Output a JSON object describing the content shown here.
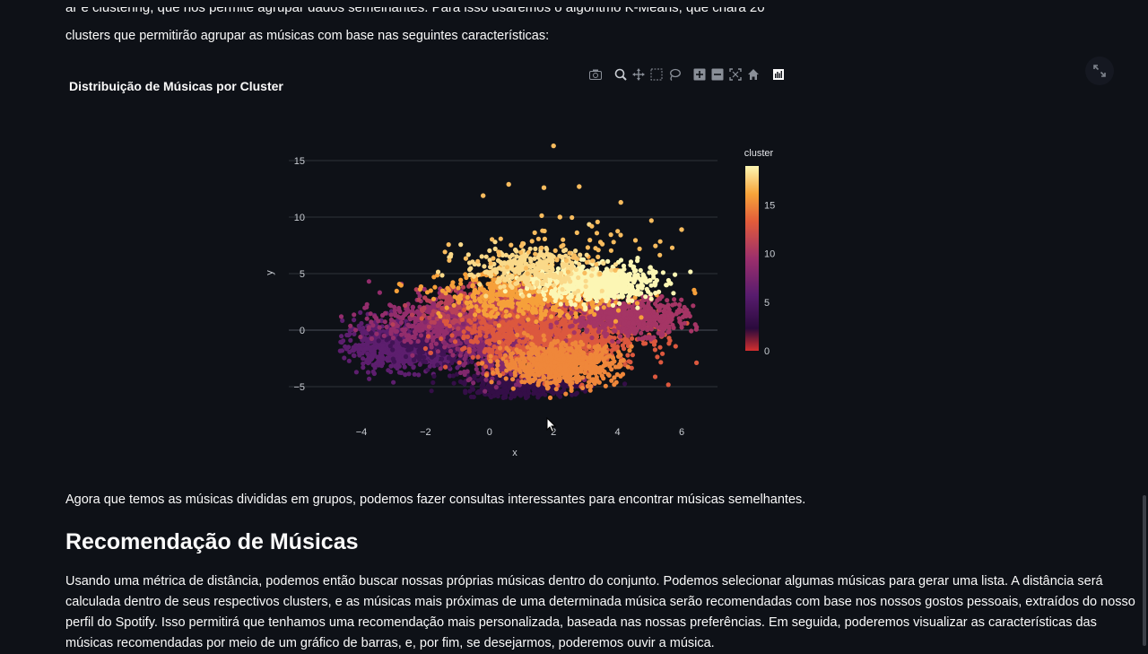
{
  "intro": {
    "line_cut": "ar e clustering, que nos permite agrupar dados semelhantes. Para isso usaremos o algoritmo K-Means, que criará 20",
    "line2": "clusters que permitirão agrupar as músicas com base nas seguintes características:"
  },
  "chart_title": "Distribuição de Músicas por Cluster",
  "modebar": {
    "icons": [
      "camera-icon",
      "zoom-icon",
      "pan-icon",
      "box-select-icon",
      "lasso-icon",
      "zoom-in-icon",
      "zoom-out-icon",
      "autoscale-icon",
      "reset-axes-icon",
      "plotly-logo-icon"
    ]
  },
  "fullscreen_icon": "expand-icon",
  "chart_data": {
    "type": "scatter",
    "xlabel": "x",
    "ylabel": "y",
    "xlim": [
      -5,
      7
    ],
    "ylim": [
      -7,
      17
    ],
    "xticks": [
      -4,
      -2,
      0,
      2,
      4,
      6
    ],
    "yticks": [
      -5,
      0,
      5,
      10,
      15
    ],
    "grid": true,
    "colorbar": {
      "title": "cluster",
      "range": [
        0,
        19
      ],
      "ticks": [
        0,
        5,
        10,
        15
      ],
      "colorscale": "inferno-like"
    },
    "point_clouds": [
      {
        "cluster": 6,
        "cx": -2.7,
        "cy": -1.3,
        "sx": 0.9,
        "sy": 1.0,
        "n": 900
      },
      {
        "cluster": 4,
        "cx": -1.3,
        "cy": -1.0,
        "sx": 0.8,
        "sy": 0.9,
        "n": 500
      },
      {
        "cluster": 3,
        "cx": 1.0,
        "cy": -4.8,
        "sx": 0.9,
        "sy": 0.6,
        "n": 500
      },
      {
        "cluster": 9,
        "cx": -0.7,
        "cy": 0.8,
        "sx": 1.3,
        "sy": 1.1,
        "n": 900
      },
      {
        "cluster": 11,
        "cx": 0.3,
        "cy": 2.0,
        "sx": 1.0,
        "sy": 1.0,
        "n": 600
      },
      {
        "cluster": 8,
        "cx": 0.7,
        "cy": -1.8,
        "sx": 0.8,
        "sy": 1.2,
        "n": 500
      },
      {
        "cluster": 13,
        "cx": 2.0,
        "cy": -0.3,
        "sx": 1.4,
        "sy": 1.5,
        "n": 1100
      },
      {
        "cluster": 10,
        "cx": 4.4,
        "cy": 1.2,
        "sx": 0.9,
        "sy": 0.8,
        "n": 600
      },
      {
        "cluster": 15,
        "cx": 2.2,
        "cy": -3.0,
        "sx": 0.9,
        "sy": 0.9,
        "n": 700
      },
      {
        "cluster": 16,
        "cx": 1.4,
        "cy": 3.2,
        "sx": 1.4,
        "sy": 1.0,
        "n": 600
      },
      {
        "cluster": 19,
        "cx": 3.3,
        "cy": 4.2,
        "sx": 0.9,
        "sy": 0.8,
        "n": 700
      },
      {
        "cluster": 18,
        "cx": 1.2,
        "cy": 5.5,
        "sx": 1.0,
        "sy": 0.9,
        "n": 300
      },
      {
        "cluster": 17,
        "cx": 2.0,
        "cy": 7.3,
        "sx": 1.5,
        "sy": 1.1,
        "n": 70
      }
    ],
    "outliers": [
      {
        "x": 2.0,
        "y": 16.3,
        "cluster": 17
      },
      {
        "x": -0.2,
        "y": 11.9,
        "cluster": 17
      },
      {
        "x": 0.6,
        "y": 12.9,
        "cluster": 17
      },
      {
        "x": 1.7,
        "y": 12.6,
        "cluster": 17
      },
      {
        "x": 2.8,
        "y": 12.7,
        "cluster": 17
      },
      {
        "x": 4.1,
        "y": 11.3,
        "cluster": 17
      },
      {
        "x": 2.2,
        "y": 10.0,
        "cluster": 17
      },
      {
        "x": 6.0,
        "y": 8.9,
        "cluster": 17
      },
      {
        "x": 1.4,
        "y": -5.3,
        "cluster": 3
      }
    ]
  },
  "after_chart": "Agora que temos as músicas divididas em grupos, podemos fazer consultas interessantes para encontrar músicas semelhantes.",
  "section_heading": "Recomendação de Músicas",
  "section_text": [
    "Usando uma métrica de distância, podemos então buscar nossas próprias músicas dentro do conjunto. Podemos selecionar algumas músicas para gerar uma lista. A distância será",
    "calculada dentro de seus respectivos clusters, e as músicas mais próximas de uma determinada música serão recomendadas com base nos nossos gostos pessoais, extraídos do nosso",
    "perfil do Spotify. Isso permitirá que tenhamos uma recomendação mais personalizada, baseada nas nossas preferências. Em seguida, poderemos visualizar as características das",
    "músicas recomendadas por meio de um gráfico de barras, e, por fim, se desejarmos, poderemos ouvir a música."
  ]
}
